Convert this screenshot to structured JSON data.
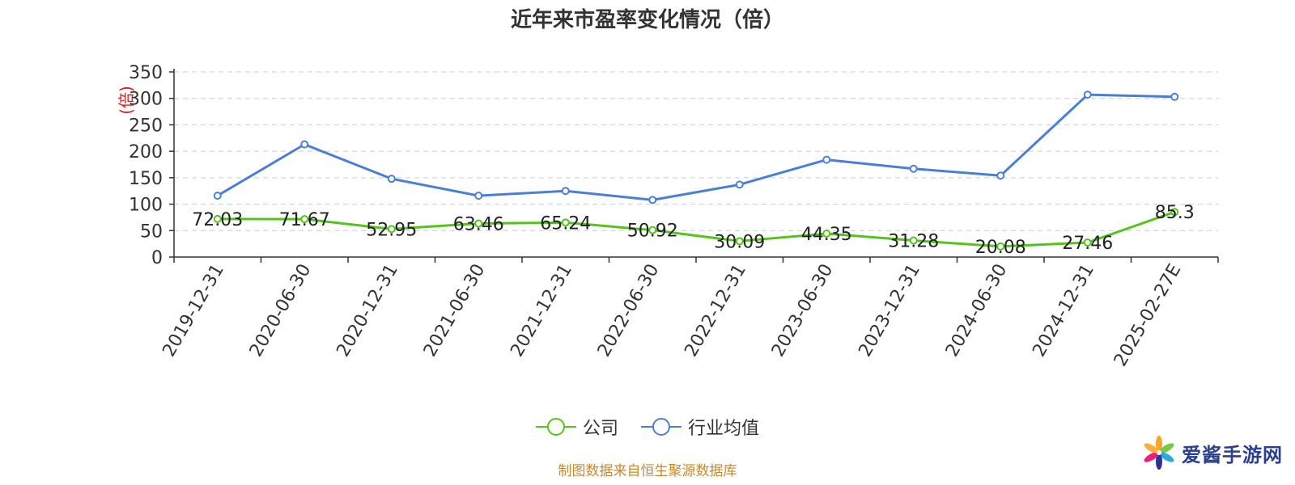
{
  "chart_data": {
    "type": "line",
    "title": "近年来市盈率变化情况（倍）",
    "ylabel": "(倍)",
    "xlabel": "",
    "ylim": [
      0,
      350
    ],
    "yticks": [
      0,
      50,
      100,
      150,
      200,
      250,
      300,
      350
    ],
    "grid": true,
    "legend_position": "bottom-center",
    "categories": [
      "2019-12-31",
      "2020-06-30",
      "2020-12-31",
      "2021-06-30",
      "2021-12-31",
      "2022-06-30",
      "2022-12-31",
      "2023-06-30",
      "2023-12-31",
      "2024-06-30",
      "2024-12-31",
      "2025-02-27E"
    ],
    "series": [
      {
        "name": "公司",
        "color": "#52c41a",
        "values": [
          72.03,
          71.67,
          52.95,
          63.46,
          65.24,
          50.92,
          30.09,
          44.35,
          31.28,
          20.08,
          27.46,
          85.3
        ],
        "labels": [
          "72.03",
          "71.67",
          "52.95",
          "63.46",
          "65.24",
          "50.92",
          "30.09",
          "44.35",
          "31.28",
          "20.08",
          "27.46",
          "85.3"
        ]
      },
      {
        "name": "行业均值",
        "color": "#4a7fd9",
        "values": [
          116,
          213,
          148,
          116,
          125,
          108,
          137,
          184,
          167,
          154,
          307,
          303
        ]
      }
    ]
  },
  "source_text": "制图数据来自恒生聚源数据库",
  "watermark": {
    "text": "爱酱手游网",
    "logo": "pinwheel-logo"
  }
}
